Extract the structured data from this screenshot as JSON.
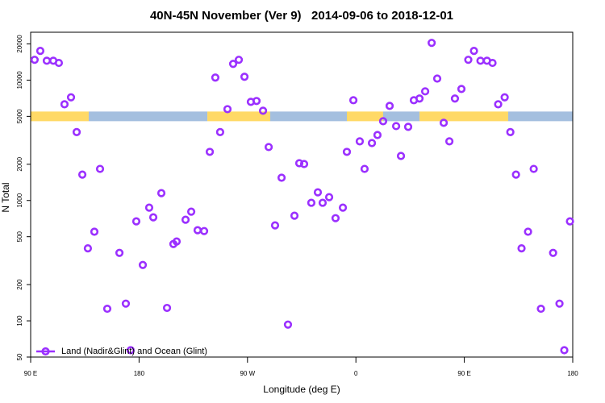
{
  "chart_data": {
    "type": "scatter",
    "title": "40N-45N November (Ver 9)   2014-09-06 to 2018-12-01",
    "xlabel": "Longitude (deg E)",
    "ylabel": "N Total",
    "log_y": true,
    "legend": "lower left",
    "xlim": [
      90,
      540
    ],
    "ylim": [
      50,
      25000
    ],
    "xticks": [
      {
        "value": 90,
        "label": "90 E"
      },
      180,
      {
        "value": 270,
        "label": "90 W"
      },
      {
        "value": 360,
        "label": "0"
      },
      {
        "value": 450,
        "label": "90 E"
      },
      {
        "value": 540,
        "label": "180"
      }
    ],
    "yticks": [
      50,
      100,
      200,
      500,
      1000,
      2000,
      5000,
      10000,
      20000
    ],
    "strip": {
      "y": 5000,
      "segments": [
        {
          "start": 90,
          "end": 138.2,
          "color": "#ffd966"
        },
        {
          "start": 138.2,
          "end": 236.7,
          "color": "#a4bfdf"
        },
        {
          "start": 236.7,
          "end": 288.9,
          "color": "#ffd966"
        },
        {
          "start": 288.9,
          "end": 352.5,
          "color": "#a4bfdf"
        },
        {
          "start": 352.5,
          "end": 382.6,
          "color": "#ffd966"
        },
        {
          "start": 382.6,
          "end": 412.8,
          "color": "#a4bfdf"
        },
        {
          "start": 412.8,
          "end": 486.4,
          "color": "#ffd966"
        },
        {
          "start": 486.4,
          "end": 540,
          "color": "#a4bfdf"
        }
      ]
    },
    "series": [
      {
        "name": "Land (Nadir&Glint) and Ocean (Glint)",
        "color": "#9b30ff",
        "x": [
          93.3,
          98.0,
          103.4,
          108.8,
          113.4,
          118.1,
          123.5,
          128.2,
          132.9,
          137.5,
          142.9,
          147.6,
          153.6,
          163.7,
          169.0,
          173.0,
          177.7,
          183.1,
          188.4,
          191.8,
          198.5,
          203.2,
          208.5,
          211.2,
          218.6,
          223.3,
          228.6,
          234.0,
          238.7,
          243.3,
          247.3,
          253.4,
          258.1,
          262.8,
          267.5,
          272.8,
          277.5,
          282.9,
          287.6,
          292.9,
          298.3,
          303.6,
          309.0,
          313.0,
          317.0,
          323.0,
          328.4,
          332.4,
          337.8,
          343.1,
          349.2,
          352.5,
          357.9,
          363.2,
          367.2,
          373.3,
          377.9,
          382.6,
          388.0,
          393.4,
          397.4,
          403.4,
          408.1,
          412.8,
          417.5,
          422.9,
          427.5,
          432.9,
          437.6,
          442.2,
          447.6,
          453.3,
          458.0,
          463.4,
          468.8,
          473.4,
          478.1,
          483.5,
          488.2,
          492.9,
          497.5,
          502.9,
          507.6,
          513.6,
          523.7,
          529.0,
          533.0,
          537.7
        ],
        "values": [
          14760,
          17500,
          14500,
          14500,
          13900,
          6300,
          7200,
          3700,
          1640,
          400,
          550,
          1830,
          126,
          367,
          139,
          57,
          671,
          291,
          872,
          725,
          1151,
          128,
          435,
          456,
          692,
          807,
          566,
          557,
          2535,
          10500,
          3700,
          5740,
          13650,
          14760,
          10670,
          6600,
          6710,
          5570,
          2780,
          621,
          1545,
          93,
          747,
          2040,
          2010,
          957,
          1169,
          957,
          1066,
          713,
          872,
          2535,
          6810,
          3100,
          1830,
          3000,
          3500,
          4560,
          6110,
          4150,
          2345,
          4090,
          6810,
          7030,
          8070,
          20400,
          10300,
          4420,
          3100,
          7030,
          8450,
          14760,
          17500,
          14500,
          14500,
          13900,
          6300,
          7200,
          3700,
          1640,
          400,
          550,
          1830,
          126,
          367,
          139,
          57,
          671
        ]
      }
    ]
  }
}
